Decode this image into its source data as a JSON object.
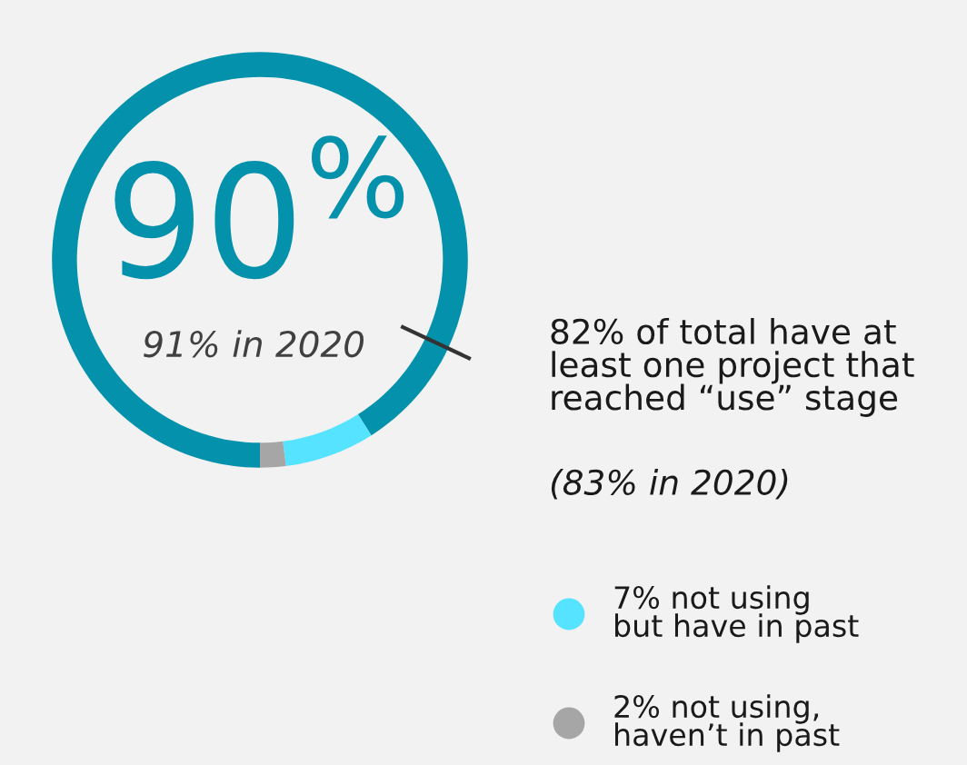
{
  "chart_data": {
    "type": "donut",
    "categories": [
      "82% of total have at\nleast one project that\nreached “use” stage",
      null,
      "7% not using\nbut have in past",
      "2% not using,\nhaven’t in past"
    ],
    "values": [
      82,
      9,
      7,
      2
    ],
    "colors": [
      "#0391ab",
      "#0391ab",
      "#55e3ff",
      "#a6a6a6"
    ],
    "legend": "right",
    "annotations": [
      "90$^{%}$",
      "91% in 2020",
      "(83% in 2020)"
    ]
  }
}
